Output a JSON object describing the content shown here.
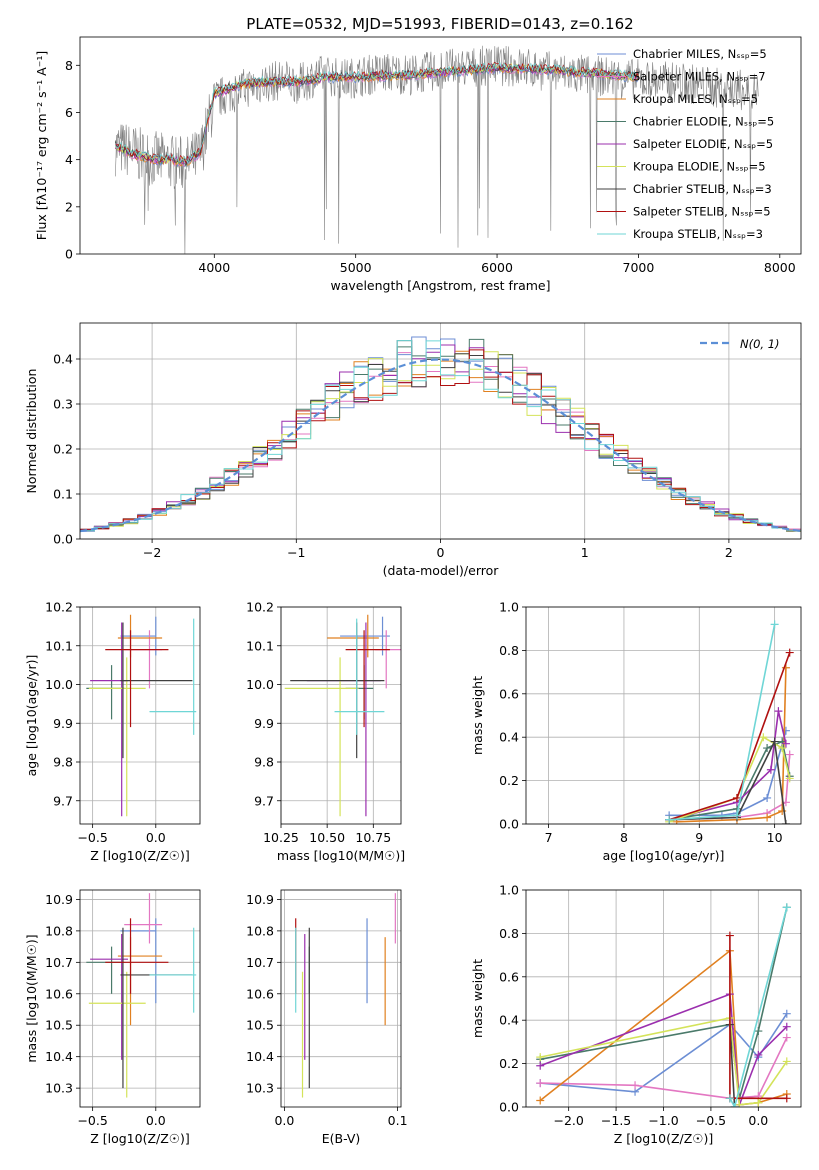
{
  "figure_title": "PLATE=0532, MJD=51993, FIBERID=0143, z=0.162",
  "chart_data": [
    {
      "type": "line",
      "name": "spectrum",
      "xlabel": "wavelength [Angstrom, rest frame]",
      "ylabel": "Flux [fλ10⁻¹⁷ erg cm⁻² s⁻¹ A⁻¹]",
      "xlim": [
        3050,
        8150
      ],
      "ylim": [
        0,
        9.2
      ],
      "xticks": [
        4000,
        5000,
        6000,
        7000,
        8000
      ],
      "yticks": [
        0,
        2,
        4,
        6,
        8
      ],
      "grid": false,
      "legend_position": "right",
      "data_color": "#808080",
      "data_flux": {
        "x": [
          3300,
          3400,
          3500,
          3600,
          3700,
          3800,
          3900,
          4000,
          4100,
          4200,
          4300,
          4400,
          4500,
          4600,
          4700,
          4800,
          4900,
          5000,
          5200,
          5400,
          5600,
          5800,
          6000,
          6200,
          6400,
          6600,
          6800,
          7000,
          7200,
          7400,
          7600,
          7800
        ],
        "y": [
          4.5,
          4.4,
          4.1,
          4.0,
          3.9,
          3.8,
          4.2,
          6.5,
          6.8,
          7.0,
          7.2,
          7.3,
          7.4,
          7.2,
          7.5,
          7.6,
          7.4,
          7.5,
          7.7,
          7.6,
          7.8,
          7.9,
          8.0,
          7.9,
          7.7,
          7.6,
          7.5,
          7.4,
          7.3,
          7.2,
          7.0,
          6.9
        ]
      },
      "models": [
        {
          "name": "Chabrier MILES, N_SSP=5",
          "color": "#6c8ed4"
        },
        {
          "name": "Salpeter MILES, N_SSP=7",
          "color": "#e377c2"
        },
        {
          "name": "Kroupa MILES, N_SSP=5",
          "color": "#e08020"
        },
        {
          "name": "Chabrier ELODIE, N_SSP=5",
          "color": "#4a7a6a"
        },
        {
          "name": "Salpeter ELODIE, N_SSP=5",
          "color": "#9b2fae"
        },
        {
          "name": "Kroupa ELODIE, N_SSP=5",
          "color": "#d4e35a"
        },
        {
          "name": "Chabrier STELIB, N_SSP=3",
          "color": "#404040"
        },
        {
          "name": "Salpeter STELIB, N_SSP=5",
          "color": "#b01010"
        },
        {
          "name": "Kroupa STELIB, N_SSP=3",
          "color": "#6fd6d6"
        }
      ],
      "model_continuum": {
        "x": [
          3300,
          3400,
          3500,
          3600,
          3700,
          3800,
          3900,
          4000,
          4200,
          4400,
          4600,
          4800,
          5000,
          5400,
          5800,
          6000,
          6400,
          6800,
          7000
        ],
        "y": [
          4.6,
          4.3,
          4.1,
          4.0,
          4.0,
          3.9,
          4.3,
          6.8,
          7.2,
          7.3,
          7.3,
          7.5,
          7.5,
          7.6,
          7.8,
          7.9,
          7.8,
          7.6,
          7.5
        ]
      }
    },
    {
      "type": "line",
      "name": "residuals",
      "xlabel": "(data-model)/error",
      "ylabel": "Normed distribution",
      "xlim": [
        -2.5,
        2.5
      ],
      "ylim": [
        0,
        0.48
      ],
      "xticks": [
        -2,
        -1,
        0,
        1,
        2
      ],
      "yticks": [
        0.0,
        0.1,
        0.2,
        0.3,
        0.4
      ],
      "grid": true,
      "legend": "N(0, 1)",
      "legend_position": "top-right",
      "gaussian": {
        "mean": 0,
        "sigma": 1,
        "color": "#5b8fd6"
      }
    },
    {
      "type": "scatter",
      "name": "age-vs-Z",
      "xlabel": "Z [log10(Z/Z☉)]",
      "ylabel": "age  [log10(age/yr)]",
      "xlim": [
        -0.6,
        0.35
      ],
      "ylim": [
        9.64,
        10.2
      ],
      "xticks": [
        -0.5,
        0.0
      ],
      "xtick_labels": [
        "−0.5",
        "0.0"
      ],
      "yticks": [
        9.7,
        9.8,
        9.9,
        10.0,
        10.1,
        10.2
      ],
      "grid": true
    },
    {
      "type": "scatter",
      "name": "age-vs-mass",
      "xlabel": "mass [log10(M/M☉)]",
      "ylabel": "",
      "xlim": [
        10.25,
        10.9
      ],
      "ylim": [
        9.64,
        10.2
      ],
      "xticks": [
        10.25,
        10.5,
        10.75
      ],
      "yticks": [
        9.7,
        9.8,
        9.9,
        10.0,
        10.1,
        10.2
      ],
      "grid": true
    },
    {
      "type": "line",
      "name": "mass-weight-vs-age",
      "xlabel": "age  [log10(age/yr)]",
      "ylabel": "mass weight",
      "xlim": [
        6.7,
        10.35
      ],
      "ylim": [
        0,
        1.0
      ],
      "xticks": [
        7,
        8,
        9,
        10
      ],
      "yticks": [
        0.0,
        0.2,
        0.4,
        0.6,
        0.8,
        1.0
      ],
      "grid": true
    },
    {
      "type": "scatter",
      "name": "mass-vs-Z",
      "xlabel": "Z [log10(Z/Z☉)]",
      "ylabel": "mass [log10(M/M☉)]",
      "xlim": [
        -0.6,
        0.35
      ],
      "ylim": [
        10.24,
        10.93
      ],
      "xticks": [
        -0.5,
        0.0
      ],
      "xtick_labels": [
        "−0.5",
        "0.0"
      ],
      "yticks": [
        10.3,
        10.4,
        10.5,
        10.6,
        10.7,
        10.8,
        10.9
      ],
      "grid": true
    },
    {
      "type": "scatter",
      "name": "mass-vs-ebv",
      "xlabel": "E(B-V)",
      "ylabel": "",
      "xlim": [
        -0.003,
        0.103
      ],
      "ylim": [
        10.24,
        10.93
      ],
      "xticks": [
        0.0,
        0.1
      ],
      "yticks": [
        10.3,
        10.4,
        10.5,
        10.6,
        10.7,
        10.8,
        10.9
      ],
      "grid": true
    },
    {
      "type": "line",
      "name": "mass-weight-vs-Z",
      "xlabel": "Z [log10(Z/Z☉)]",
      "ylabel": "mass weight",
      "xlim": [
        -2.45,
        0.45
      ],
      "ylim": [
        0,
        1.0
      ],
      "xticks": [
        -2.0,
        -1.5,
        -1.0,
        -0.5,
        0.0
      ],
      "xtick_labels": [
        "−2.0",
        "−1.5",
        "−1.0",
        "−0.5",
        "0.0"
      ],
      "yticks": [
        0.0,
        0.2,
        0.4,
        0.6,
        0.8,
        1.0
      ],
      "grid": true
    }
  ],
  "model_fits": [
    {
      "color": "#6c8ed4",
      "Z": 0.0,
      "Zerr": [
        0.28,
        0.0
      ],
      "age": 10.125,
      "ageerr": [
        0.05,
        0.05
      ],
      "mass": 10.8,
      "masserr": [
        0.23,
        0.04
      ],
      "ebv": 0.073,
      "ebverr": 0.08,
      "age_w": [
        [
          8.6,
          0.04
        ],
        [
          9.3,
          0.04
        ],
        [
          9.5,
          0.05
        ],
        [
          9.9,
          0.12
        ],
        [
          10.15,
          0.43
        ]
      ],
      "z_w": [
        [
          -2.3,
          0.11
        ],
        [
          -1.3,
          0.07
        ],
        [
          -0.3,
          0.38
        ],
        [
          0.0,
          0.23
        ],
        [
          0.3,
          0.43
        ]
      ]
    },
    {
      "color": "#e377c2",
      "Z": -0.05,
      "Zerr": [
        0.2,
        0.1
      ],
      "age": 10.09,
      "ageerr": [
        0.1,
        0.05
      ],
      "mass": 10.82,
      "masserr": [
        0.06,
        0.1
      ],
      "ebv": 0.098,
      "ebverr": 0.1,
      "age_w": [
        [
          8.6,
          0.02
        ],
        [
          9.5,
          0.03
        ],
        [
          9.9,
          0.05
        ],
        [
          10.15,
          0.1
        ],
        [
          10.2,
          0.32
        ]
      ],
      "z_w": [
        [
          -2.3,
          0.11
        ],
        [
          -1.3,
          0.1
        ],
        [
          -0.3,
          0.04
        ],
        [
          0.0,
          0.05
        ],
        [
          0.3,
          0.32
        ]
      ]
    },
    {
      "color": "#e08020",
      "Z": -0.2,
      "Zerr": [
        0.1,
        0.25
      ],
      "age": 10.12,
      "ageerr": [
        0.05,
        0.06
      ],
      "mass": 10.72,
      "masserr": [
        0.22,
        0.06
      ],
      "ebv": 0.089,
      "ebverr": 0.1,
      "age_w": [
        [
          8.7,
          0.01
        ],
        [
          9.5,
          0.02
        ],
        [
          9.9,
          0.03
        ],
        [
          10.1,
          0.06
        ],
        [
          10.15,
          0.72
        ]
      ],
      "z_w": [
        [
          -2.3,
          0.03
        ],
        [
          -0.3,
          0.72
        ],
        [
          -0.2,
          0.01
        ],
        [
          0.0,
          0.02
        ],
        [
          0.3,
          0.06
        ]
      ]
    },
    {
      "color": "#4a7a6a",
      "Z": -0.35,
      "Zerr": [
        0.2,
        0.1
      ],
      "age": 9.99,
      "ageerr": [
        0.08,
        0.06
      ],
      "mass": 10.7,
      "masserr": [
        0.1,
        0.05
      ],
      "ebv": 0.022,
      "ebverr": 0.06,
      "age_w": [
        [
          8.6,
          0.02
        ],
        [
          9.5,
          0.07
        ],
        [
          9.9,
          0.35
        ],
        [
          10.1,
          0.38
        ],
        [
          10.2,
          0.22
        ]
      ],
      "z_w": [
        [
          -2.3,
          0.22
        ],
        [
          -0.3,
          0.38
        ],
        [
          -0.2,
          0.04
        ],
        [
          0.0,
          0.35
        ],
        [
          0.3,
          0.92
        ]
      ]
    },
    {
      "color": "#9b2fae",
      "Z": -0.27,
      "Zerr": [
        0.25,
        0.05
      ],
      "age": 10.01,
      "ageerr": [
        0.35,
        0.15
      ],
      "mass": 10.71,
      "masserr": [
        0.32,
        0.08
      ],
      "ebv": 0.018,
      "ebverr": 0.07,
      "age_w": [
        [
          8.6,
          0.02
        ],
        [
          9.5,
          0.1
        ],
        [
          9.95,
          0.25
        ],
        [
          10.05,
          0.52
        ],
        [
          10.15,
          0.37
        ]
      ],
      "z_w": [
        [
          -2.3,
          0.19
        ],
        [
          -0.3,
          0.52
        ],
        [
          -0.2,
          0.01
        ],
        [
          0.0,
          0.24
        ],
        [
          0.3,
          0.37
        ]
      ]
    },
    {
      "color": "#d4e35a",
      "Z": -0.23,
      "Zerr": [
        0.3,
        0.15
      ],
      "age": 9.99,
      "ageerr": [
        0.33,
        0.08
      ],
      "mass": 10.57,
      "masserr": [
        0.3,
        0.1
      ],
      "ebv": 0.016,
      "ebverr": 0.09,
      "age_w": [
        [
          8.6,
          0.01
        ],
        [
          9.5,
          0.12
        ],
        [
          9.85,
          0.4
        ],
        [
          10.1,
          0.35
        ],
        [
          10.2,
          0.21
        ]
      ],
      "z_w": [
        [
          -2.3,
          0.23
        ],
        [
          -0.3,
          0.41
        ],
        [
          -0.2,
          0.01
        ],
        [
          0.0,
          0.02
        ],
        [
          0.3,
          0.21
        ]
      ]
    },
    {
      "color": "#404040",
      "Z": -0.26,
      "Zerr": [
        0.02,
        0.55
      ],
      "age": 10.01,
      "ageerr": [
        0.2,
        0.15
      ],
      "mass": 10.66,
      "masserr": [
        0.36,
        0.15
      ],
      "ebv": 0.022,
      "ebverr": 0.07,
      "age_w": [
        [
          8.6,
          0.02
        ],
        [
          9.5,
          0.03
        ],
        [
          10.0,
          0.38
        ],
        [
          10.15,
          0.0
        ]
      ],
      "z_w": [
        [
          -0.3,
          0.38
        ],
        [
          -0.25,
          0.0
        ]
      ]
    },
    {
      "color": "#b01010",
      "Z": -0.2,
      "Zerr": [
        0.2,
        0.3
      ],
      "age": 10.09,
      "ageerr": [
        0.2,
        0.05
      ],
      "mass": 10.7,
      "masserr": [
        0.1,
        0.14
      ],
      "ebv": 0.01,
      "ebverr": 0.07,
      "age_w": [
        [
          8.6,
          0.02
        ],
        [
          9.5,
          0.12
        ],
        [
          10.2,
          0.79
        ]
      ],
      "z_w": [
        [
          -0.3,
          0.79
        ],
        [
          -0.3,
          0.04
        ],
        [
          0.3,
          0.04
        ]
      ]
    },
    {
      "color": "#6fd6d6",
      "Z": 0.3,
      "Zerr": [
        0.35,
        0.02
      ],
      "age": 9.93,
      "ageerr": [
        0.06,
        0.24
      ],
      "mass": 10.66,
      "masserr": [
        0.12,
        0.15
      ],
      "ebv": 0.01,
      "ebverr": 0.06,
      "age_w": [
        [
          8.6,
          0.02
        ],
        [
          9.5,
          0.04
        ],
        [
          10.0,
          0.92
        ]
      ],
      "z_w": [
        [
          -0.3,
          0.04
        ],
        [
          -0.25,
          0.0
        ],
        [
          0.3,
          0.92
        ]
      ]
    }
  ]
}
